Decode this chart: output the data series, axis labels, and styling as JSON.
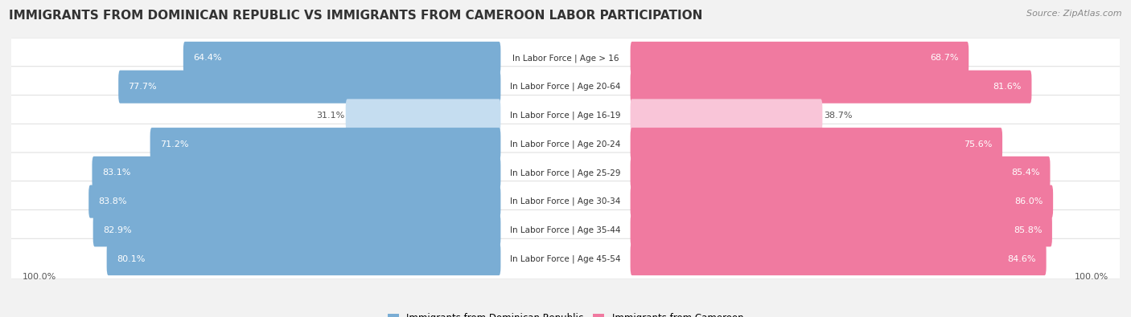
{
  "title": "IMMIGRANTS FROM DOMINICAN REPUBLIC VS IMMIGRANTS FROM CAMEROON LABOR PARTICIPATION",
  "source": "Source: ZipAtlas.com",
  "categories": [
    "In Labor Force | Age > 16",
    "In Labor Force | Age 20-64",
    "In Labor Force | Age 16-19",
    "In Labor Force | Age 20-24",
    "In Labor Force | Age 25-29",
    "In Labor Force | Age 30-34",
    "In Labor Force | Age 35-44",
    "In Labor Force | Age 45-54"
  ],
  "dominican": [
    64.4,
    77.7,
    31.1,
    71.2,
    83.1,
    83.8,
    82.9,
    80.1
  ],
  "cameroon": [
    68.7,
    81.6,
    38.7,
    75.6,
    85.4,
    86.0,
    85.8,
    84.6
  ],
  "dominican_color": "#7aadd4",
  "cameroon_color": "#f07aa0",
  "dominican_light": "#c5ddf0",
  "cameroon_light": "#f9c5d8",
  "row_bg": "#e8e8e8",
  "row_bg_alt": "#f0f0f0",
  "background_color": "#f2f2f2",
  "label_color_dark": "#555555",
  "legend_label_dominican": "Immigrants from Dominican Republic",
  "legend_label_cameroon": "Immigrants from Cameroon",
  "axis_label": "100.0%",
  "title_fontsize": 11,
  "source_fontsize": 8,
  "bar_fontsize": 8,
  "cat_fontsize": 7.5
}
